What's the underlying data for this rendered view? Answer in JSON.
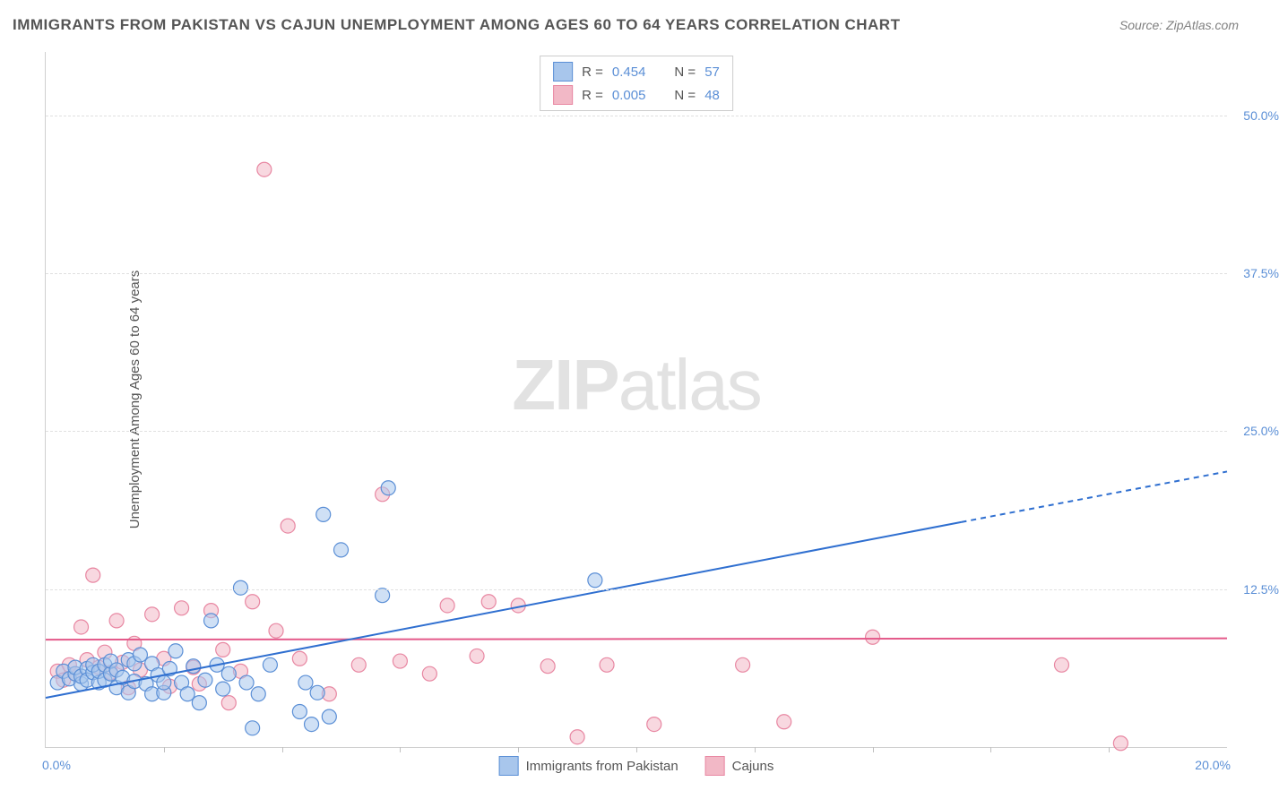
{
  "title": "IMMIGRANTS FROM PAKISTAN VS CAJUN UNEMPLOYMENT AMONG AGES 60 TO 64 YEARS CORRELATION CHART",
  "source": "Source: ZipAtlas.com",
  "ylabel": "Unemployment Among Ages 60 to 64 years",
  "watermark_bold": "ZIP",
  "watermark_rest": "atlas",
  "chart": {
    "type": "scatter",
    "xlim": [
      0,
      20
    ],
    "ylim": [
      0,
      55
    ],
    "y_ticks": [
      12.5,
      25.0,
      37.5,
      50.0
    ],
    "y_tick_labels": [
      "12.5%",
      "25.0%",
      "37.5%",
      "50.0%"
    ],
    "x_tick_positions": [
      2,
      4,
      6,
      8,
      10,
      12,
      14,
      16,
      18
    ],
    "x_axis_label_left": "0.0%",
    "x_axis_label_right": "20.0%",
    "background_color": "#ffffff",
    "grid_color": "#e0e0e0",
    "marker_radius": 8,
    "marker_stroke_width": 1.2,
    "series": [
      {
        "name": "Immigrants from Pakistan",
        "color_fill": "#a8c6ec",
        "color_stroke": "#5b8fd6",
        "fill_opacity": 0.55,
        "R": "0.454",
        "N": "57",
        "trend": {
          "x1": 0,
          "y1": 3.9,
          "x2": 15.5,
          "y2": 17.8,
          "x3": 20,
          "y3": 21.8,
          "solid_color": "#2f6fd0",
          "dash_after_x": 15.5,
          "width": 2
        },
        "points": [
          [
            0.2,
            5.1
          ],
          [
            0.3,
            6.0
          ],
          [
            0.4,
            5.4
          ],
          [
            0.5,
            5.8
          ],
          [
            0.5,
            6.3
          ],
          [
            0.6,
            5.0
          ],
          [
            0.6,
            5.6
          ],
          [
            0.7,
            6.2
          ],
          [
            0.7,
            5.3
          ],
          [
            0.8,
            5.9
          ],
          [
            0.8,
            6.5
          ],
          [
            0.9,
            5.1
          ],
          [
            0.9,
            6.0
          ],
          [
            1.0,
            6.5
          ],
          [
            1.0,
            5.3
          ],
          [
            1.1,
            5.8
          ],
          [
            1.1,
            6.8
          ],
          [
            1.2,
            4.7
          ],
          [
            1.2,
            6.1
          ],
          [
            1.3,
            5.5
          ],
          [
            1.4,
            6.9
          ],
          [
            1.4,
            4.3
          ],
          [
            1.5,
            5.2
          ],
          [
            1.5,
            6.6
          ],
          [
            1.6,
            7.3
          ],
          [
            1.7,
            5.0
          ],
          [
            1.8,
            4.2
          ],
          [
            1.8,
            6.6
          ],
          [
            1.9,
            5.7
          ],
          [
            2.0,
            4.3
          ],
          [
            2.0,
            5.1
          ],
          [
            2.1,
            6.2
          ],
          [
            2.2,
            7.6
          ],
          [
            2.3,
            5.1
          ],
          [
            2.4,
            4.2
          ],
          [
            2.5,
            6.4
          ],
          [
            2.6,
            3.5
          ],
          [
            2.7,
            5.3
          ],
          [
            2.8,
            10.0
          ],
          [
            2.9,
            6.5
          ],
          [
            3.0,
            4.6
          ],
          [
            3.1,
            5.8
          ],
          [
            3.3,
            12.6
          ],
          [
            3.4,
            5.1
          ],
          [
            3.5,
            1.5
          ],
          [
            3.6,
            4.2
          ],
          [
            3.8,
            6.5
          ],
          [
            4.3,
            2.8
          ],
          [
            4.4,
            5.1
          ],
          [
            4.5,
            1.8
          ],
          [
            4.6,
            4.3
          ],
          [
            4.7,
            18.4
          ],
          [
            4.8,
            2.4
          ],
          [
            5.0,
            15.6
          ],
          [
            5.7,
            12.0
          ],
          [
            5.8,
            20.5
          ],
          [
            9.3,
            13.2
          ]
        ]
      },
      {
        "name": "Cajuns",
        "color_fill": "#f2b8c6",
        "color_stroke": "#e887a2",
        "fill_opacity": 0.55,
        "R": "0.005",
        "N": "48",
        "trend": {
          "x1": 0,
          "y1": 8.5,
          "x2": 20,
          "y2": 8.6,
          "solid_color": "#e45a8a",
          "width": 2
        },
        "points": [
          [
            0.2,
            6.0
          ],
          [
            0.3,
            5.3
          ],
          [
            0.4,
            6.5
          ],
          [
            0.5,
            5.8
          ],
          [
            0.6,
            9.5
          ],
          [
            0.7,
            6.9
          ],
          [
            0.8,
            13.6
          ],
          [
            0.9,
            6.3
          ],
          [
            1.0,
            7.5
          ],
          [
            1.1,
            5.9
          ],
          [
            1.2,
            10.0
          ],
          [
            1.3,
            6.7
          ],
          [
            1.4,
            4.7
          ],
          [
            1.5,
            8.2
          ],
          [
            1.6,
            6.1
          ],
          [
            1.8,
            10.5
          ],
          [
            2.0,
            7.0
          ],
          [
            2.1,
            4.8
          ],
          [
            2.3,
            11.0
          ],
          [
            2.5,
            6.3
          ],
          [
            2.6,
            5.0
          ],
          [
            2.8,
            10.8
          ],
          [
            3.0,
            7.7
          ],
          [
            3.1,
            3.5
          ],
          [
            3.3,
            6.0
          ],
          [
            3.5,
            11.5
          ],
          [
            3.7,
            45.7
          ],
          [
            3.9,
            9.2
          ],
          [
            4.1,
            17.5
          ],
          [
            4.3,
            7.0
          ],
          [
            4.8,
            4.2
          ],
          [
            5.3,
            6.5
          ],
          [
            5.7,
            20.0
          ],
          [
            6.0,
            6.8
          ],
          [
            6.5,
            5.8
          ],
          [
            6.8,
            11.2
          ],
          [
            7.3,
            7.2
          ],
          [
            7.5,
            11.5
          ],
          [
            8.0,
            11.2
          ],
          [
            8.5,
            6.4
          ],
          [
            9.0,
            0.8
          ],
          [
            9.5,
            6.5
          ],
          [
            10.3,
            1.8
          ],
          [
            11.8,
            6.5
          ],
          [
            12.5,
            2.0
          ],
          [
            14.0,
            8.7
          ],
          [
            17.2,
            6.5
          ],
          [
            18.2,
            0.3
          ]
        ]
      }
    ]
  },
  "legend": {
    "r_label": "R =",
    "n_label": "N ="
  },
  "bottom_legend": {
    "series1_label": "Immigrants from Pakistan",
    "series2_label": "Cajuns"
  }
}
